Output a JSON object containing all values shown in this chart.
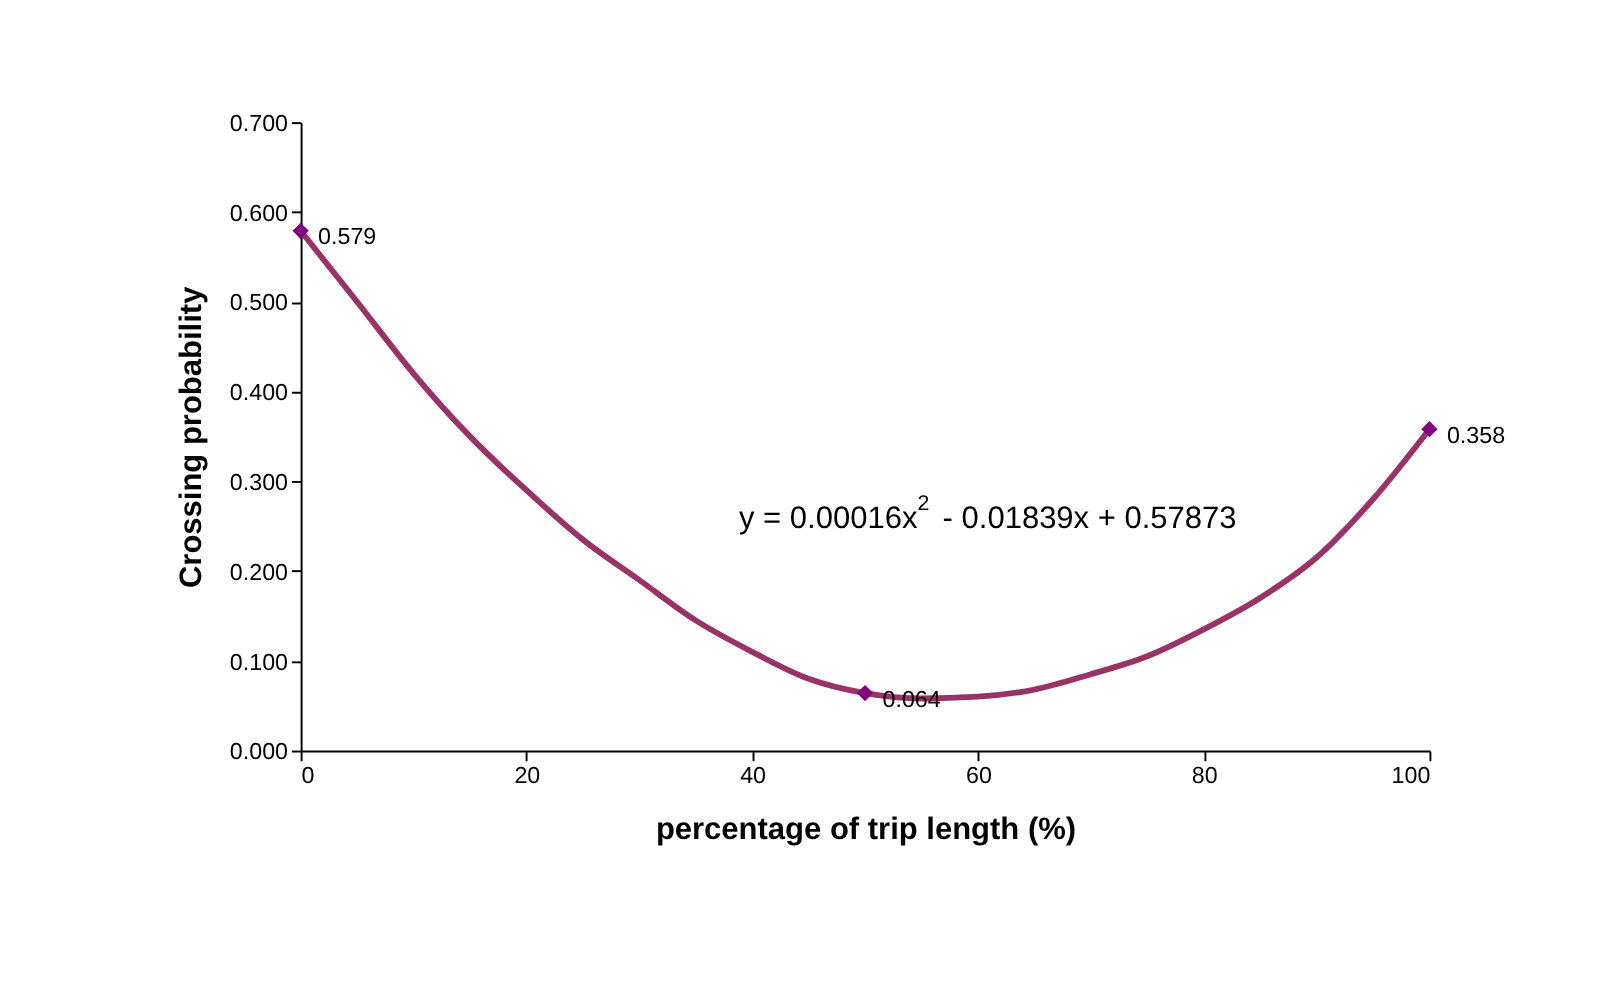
{
  "chart_data": {
    "type": "scatter",
    "xlabel": "percentage of trip length (%)",
    "ylabel": "Crossing probability",
    "xlim": [
      0,
      100
    ],
    "xticks": [
      0,
      20,
      40,
      60,
      80,
      100
    ],
    "ylim": [
      0,
      0.7
    ],
    "yticks": [
      {
        "value": 0,
        "label": "0.000"
      },
      {
        "value": 0.1,
        "label": "0.100"
      },
      {
        "value": 0.2,
        "label": "0.200"
      },
      {
        "value": 0.3,
        "label": "0.300"
      },
      {
        "value": 0.4,
        "label": "0.400"
      },
      {
        "value": 0.5,
        "label": "0.500"
      },
      {
        "value": 0.6,
        "label": "0.600"
      },
      {
        "value": 0.7,
        "label": "0.700"
      }
    ],
    "grid": false,
    "annotations": [
      "y = 0.00016x$^{2}$ - 0.01839x + 0.57873"
    ],
    "series": [
      {
        "type": "line",
        "color": "#993366",
        "marker": "none",
        "line_style": "solid",
        "x": [
          0,
          5,
          10,
          15,
          20,
          25,
          30,
          35,
          40,
          45,
          50,
          55,
          60,
          65,
          70,
          75,
          80,
          85,
          90,
          95,
          100
        ],
        "values": [
          0.579,
          0.5,
          0.42,
          0.35,
          0.29,
          0.235,
          0.19,
          0.145,
          0.11,
          0.08,
          0.064,
          0.058,
          0.06,
          0.068,
          0.085,
          0.105,
          0.135,
          0.17,
          0.215,
          0.28,
          0.358
        ]
      },
      {
        "type": "scatter",
        "color": "#800080",
        "marker": "diamond",
        "data_labels": true,
        "x": [
          0,
          50,
          100
        ],
        "values": [
          0.579,
          0.064,
          0.358
        ]
      }
    ]
  }
}
